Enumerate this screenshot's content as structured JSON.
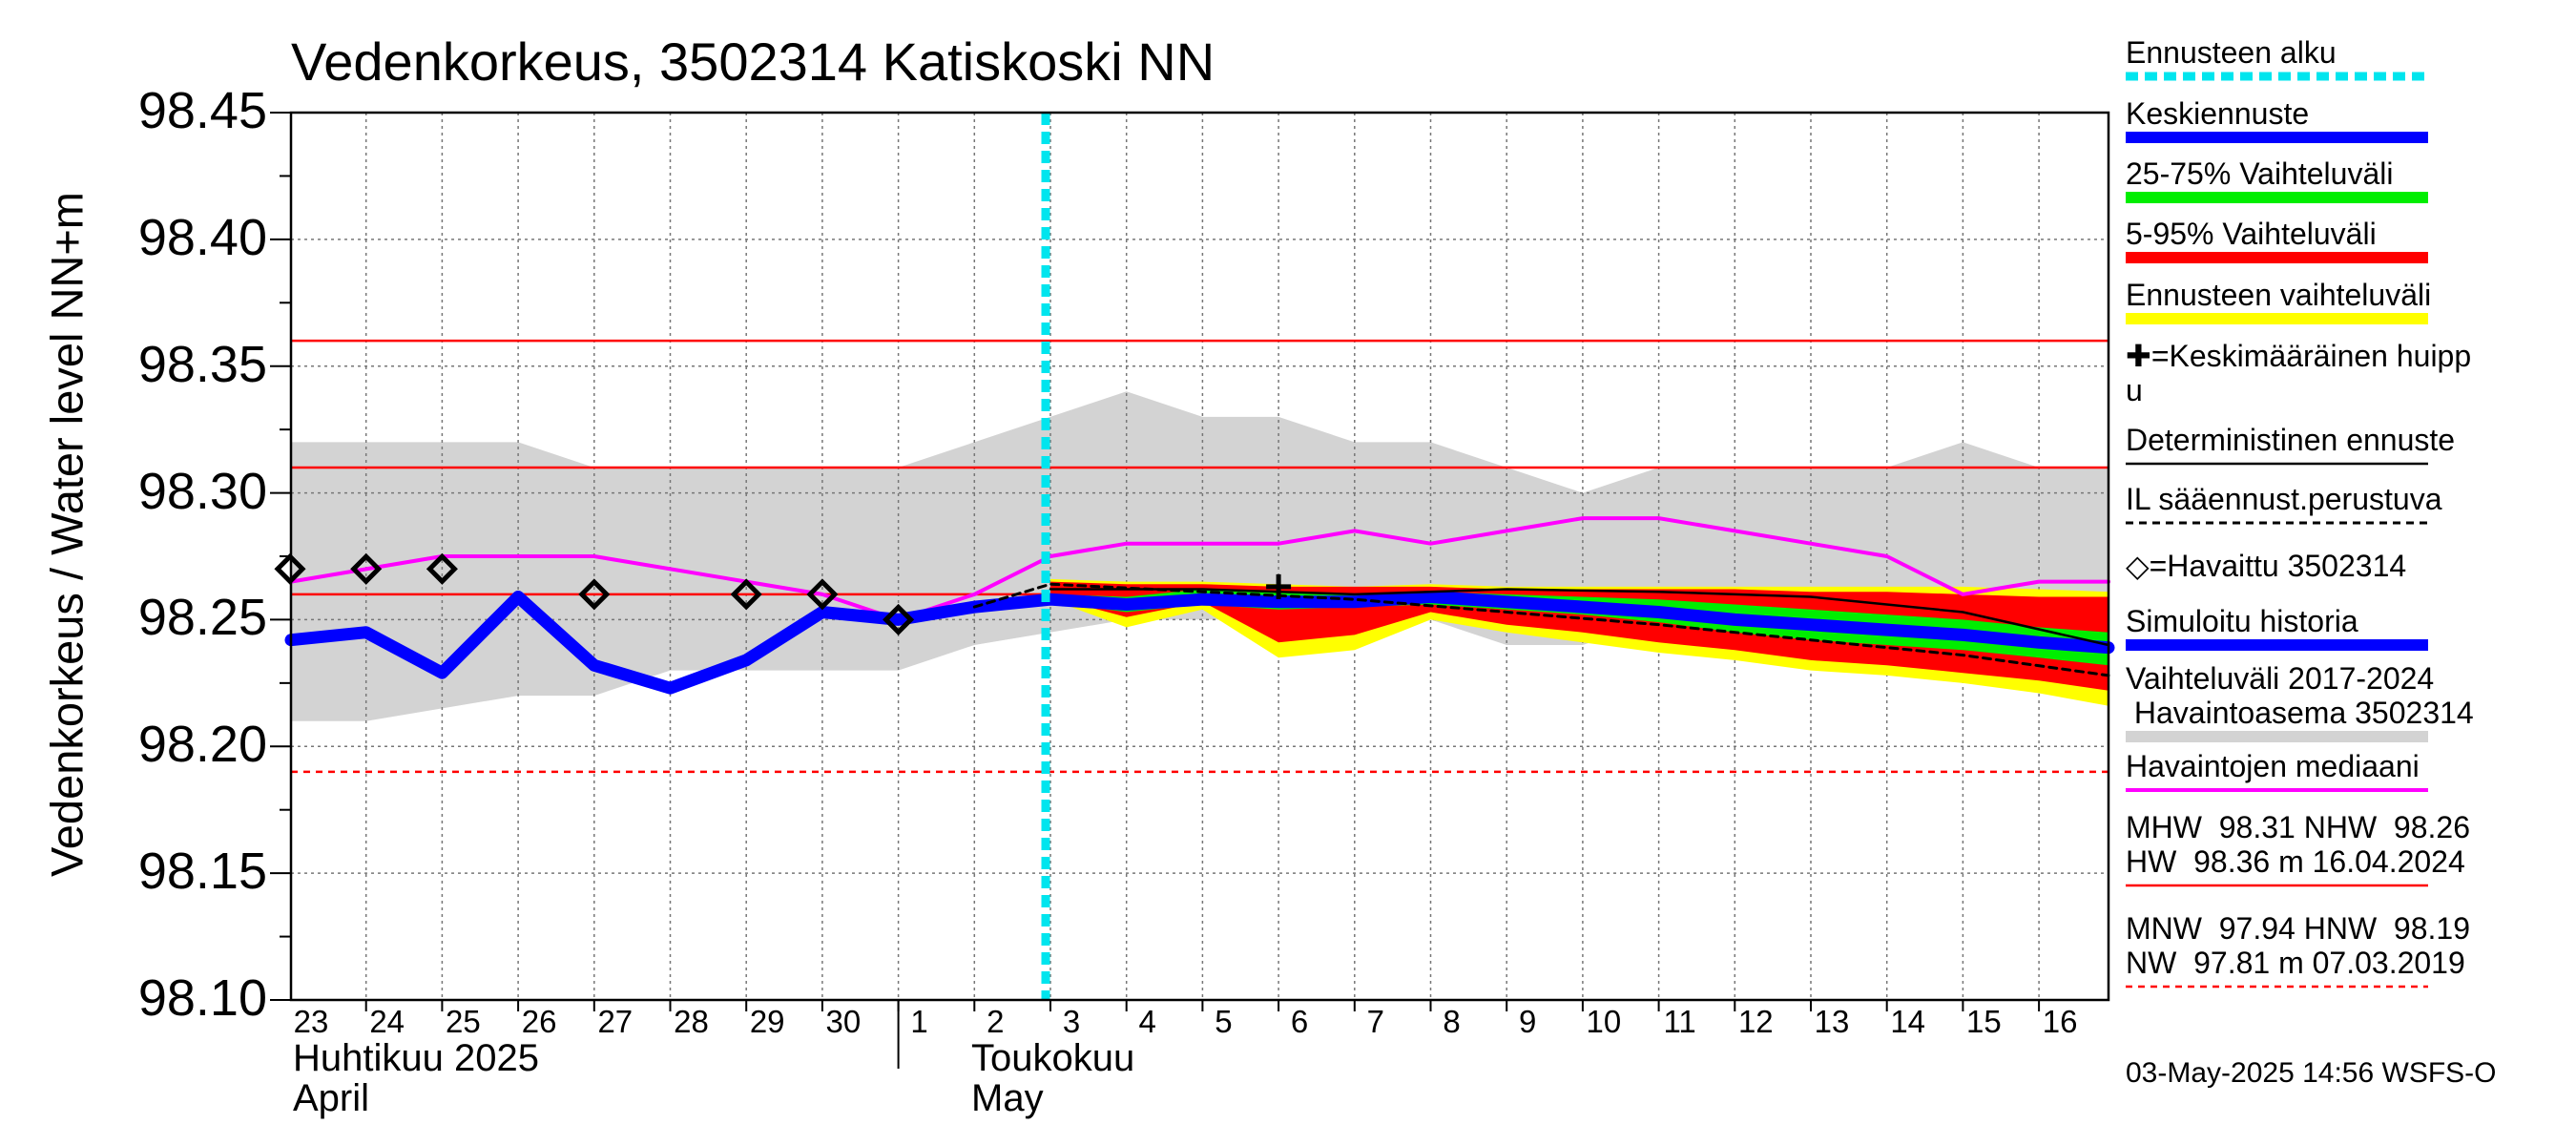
{
  "title": "Vedenkorkeus, 3502314 Katiskoski NN",
  "y_axis": {
    "label": "Vedenkorkeus / Water level   NN+m",
    "ticks": [
      "98.45",
      "98.40",
      "98.35",
      "98.30",
      "98.25",
      "98.20",
      "98.15",
      "98.10"
    ]
  },
  "x_axis": {
    "day_labels": [
      "23",
      "24",
      "25",
      "26",
      "27",
      "28",
      "29",
      "30",
      "1",
      "2",
      "3",
      "4",
      "5",
      "6",
      "7",
      "8",
      "9",
      "10",
      "11",
      "12",
      "13",
      "14",
      "15",
      "16"
    ],
    "month_left": {
      "fi": "Huhtikuu  2025",
      "en": "April"
    },
    "month_right": {
      "fi": "Toukokuu",
      "en": "May"
    }
  },
  "legend": {
    "items": [
      {
        "label": "Ennusteen alku",
        "color": "#00e5ee",
        "style": "dashed-thick"
      },
      {
        "label": "Keskiennuste",
        "color": "#0000ff",
        "style": "thick"
      },
      {
        "label": "25-75% Vaihteluväli",
        "color": "#00ee00",
        "style": "thick"
      },
      {
        "label": "5-95% Vaihteluväli",
        "color": "#ff0000",
        "style": "thick"
      },
      {
        "label": "Ennusteen vaihteluväli",
        "color": "#ffff00",
        "style": "thick"
      },
      {
        "label": "✚=Keskimääräinen huipp\nu",
        "color": "",
        "style": "none"
      },
      {
        "label": "Deterministinen ennuste",
        "color": "#000000",
        "style": "thin"
      },
      {
        "label": "IL sääennust.perustuva",
        "color": "#000000",
        "style": "dashed"
      },
      {
        "label": "◇=Havaittu 3502314",
        "color": "",
        "style": "none"
      },
      {
        "label": "Simuloitu historia",
        "color": "#0000ff",
        "style": "thick"
      },
      {
        "label": "Vaihteluväli 2017-2024\n Havaintoasema 3502314",
        "color": "#d3d3d3",
        "style": "thick"
      },
      {
        "label": "Havaintojen mediaani",
        "color": "#ff00ff",
        "style": "medium"
      },
      {
        "label": "MHW  98.31 NHW  98.26\nHW  98.36 m 16.04.2024",
        "color": "#ff0000",
        "style": "thin"
      },
      {
        "label": "MNW  97.94 HNW  98.19\nNW  97.81 m 07.03.2019",
        "color": "#ff0000",
        "style": "dotted"
      }
    ]
  },
  "timestamp": "03-May-2025 14:56 WSFS-O",
  "chart_data": {
    "type": "line",
    "title": "Vedenkorkeus, 3502314 Katiskoski NN",
    "ylabel": "Vedenkorkeus / Water level   NN+m",
    "ylim": [
      98.1,
      98.45
    ],
    "xlim": [
      "2025-04-23",
      "2025-05-16"
    ],
    "x": [
      "2025-04-23",
      "2025-04-24",
      "2025-04-25",
      "2025-04-26",
      "2025-04-27",
      "2025-04-28",
      "2025-04-29",
      "2025-04-30",
      "2025-05-01",
      "2025-05-02",
      "2025-05-03",
      "2025-05-04",
      "2025-05-05",
      "2025-05-06",
      "2025-05-07",
      "2025-05-08",
      "2025-05-09",
      "2025-05-10",
      "2025-05-11",
      "2025-05-12",
      "2025-05-13",
      "2025-05-14",
      "2025-05-15",
      "2025-05-16"
    ],
    "forecast_start": "2025-05-03",
    "reference_lines": [
      {
        "name": "HW",
        "value": 98.36,
        "color": "#ff0000",
        "style": "solid"
      },
      {
        "name": "MHW",
        "value": 98.31,
        "color": "#ff0000",
        "style": "solid"
      },
      {
        "name": "NHW",
        "value": 98.26,
        "color": "#ff0000",
        "style": "solid"
      },
      {
        "name": "HNW",
        "value": 98.19,
        "color": "#ff0000",
        "style": "dotted"
      }
    ],
    "variation_band_2017_2024": {
      "x": [
        "2025-04-22",
        "2025-04-24",
        "2025-04-26",
        "2025-04-27",
        "2025-04-28",
        "2025-04-30",
        "2025-05-01",
        "2025-05-02",
        "2025-05-04",
        "2025-05-05",
        "2025-05-06",
        "2025-05-07",
        "2025-05-08",
        "2025-05-09",
        "2025-05-10",
        "2025-05-11",
        "2025-05-12",
        "2025-05-13",
        "2025-05-14",
        "2025-05-15",
        "2025-05-16",
        "2025-05-17"
      ],
      "upper": [
        98.32,
        98.32,
        98.32,
        98.31,
        98.31,
        98.31,
        98.31,
        98.32,
        98.34,
        98.33,
        98.33,
        98.32,
        98.32,
        98.31,
        98.3,
        98.31,
        98.31,
        98.31,
        98.31,
        98.32,
        98.31,
        98.31
      ],
      "lower": [
        98.21,
        98.21,
        98.22,
        98.22,
        98.23,
        98.23,
        98.23,
        98.24,
        98.25,
        98.25,
        98.25,
        98.25,
        98.25,
        98.24,
        98.24,
        98.25,
        98.25,
        98.25,
        98.25,
        98.24,
        98.24,
        98.24
      ]
    },
    "series": [
      {
        "name": "Havaintojen mediaani",
        "color": "#ff00ff",
        "x": [
          "2025-04-23",
          "2025-04-25",
          "2025-04-27",
          "2025-04-29",
          "2025-04-30",
          "2025-05-01",
          "2025-05-02",
          "2025-05-03",
          "2025-05-04",
          "2025-05-05",
          "2025-05-06",
          "2025-05-07",
          "2025-05-08",
          "2025-05-09",
          "2025-05-10",
          "2025-05-11",
          "2025-05-12",
          "2025-05-13",
          "2025-05-14",
          "2025-05-15",
          "2025-05-16",
          "2025-05-17"
        ],
        "values": [
          98.265,
          98.275,
          98.275,
          98.265,
          98.26,
          98.25,
          98.26,
          98.275,
          98.28,
          98.28,
          98.28,
          98.285,
          98.28,
          98.285,
          98.29,
          98.29,
          98.285,
          98.28,
          98.275,
          98.26,
          98.265,
          98.265
        ]
      },
      {
        "name": "Simuloitu historia",
        "color": "#0000ff",
        "x": [
          "2025-04-23",
          "2025-04-24",
          "2025-04-25",
          "2025-04-26",
          "2025-04-27",
          "2025-04-28",
          "2025-04-29",
          "2025-04-30",
          "2025-05-01",
          "2025-05-02",
          "2025-05-03"
        ],
        "values": [
          98.242,
          98.245,
          98.229,
          98.259,
          98.232,
          98.223,
          98.234,
          98.253,
          98.25,
          98.255,
          98.258
        ]
      },
      {
        "name": "Keskiennuste",
        "color": "#0000ff",
        "x": [
          "2025-05-03",
          "2025-05-04",
          "2025-05-05",
          "2025-05-06",
          "2025-05-07",
          "2025-05-08",
          "2025-05-09",
          "2025-05-10",
          "2025-05-11",
          "2025-05-12",
          "2025-05-13",
          "2025-05-14",
          "2025-05-15",
          "2025-05-16",
          "2025-05-17"
        ],
        "values": [
          98.258,
          98.256,
          98.258,
          98.257,
          98.257,
          98.259,
          98.257,
          98.255,
          98.253,
          98.25,
          98.248,
          98.246,
          98.244,
          98.241,
          98.239
        ]
      },
      {
        "name": "Deterministinen ennuste",
        "color": "#000000",
        "x": [
          "2025-05-03",
          "2025-05-05",
          "2025-05-07",
          "2025-05-09",
          "2025-05-11",
          "2025-05-13",
          "2025-05-15",
          "2025-05-17"
        ],
        "values": [
          98.262,
          98.262,
          98.26,
          98.262,
          98.261,
          98.259,
          98.253,
          98.24
        ]
      },
      {
        "name": "IL sääennust.perustuva",
        "color": "#000000",
        "x": [
          "2025-05-02",
          "2025-05-03",
          "2025-05-05",
          "2025-05-07",
          "2025-05-09",
          "2025-05-11",
          "2025-05-13",
          "2025-05-15",
          "2025-05-17"
        ],
        "values": [
          98.255,
          98.264,
          98.261,
          98.258,
          98.253,
          98.248,
          98.242,
          98.236,
          98.228
        ]
      },
      {
        "name": "Havaittu 3502314",
        "color": "#000000",
        "marker": "diamond",
        "x": [
          "2025-04-23",
          "2025-04-24",
          "2025-04-25",
          "2025-04-27",
          "2025-04-29",
          "2025-04-30",
          "2025-05-01"
        ],
        "values": [
          98.27,
          98.27,
          98.27,
          98.26,
          98.26,
          98.26,
          98.25
        ]
      },
      {
        "name": "Keskimääräinen huippu",
        "color": "#000000",
        "marker": "plus",
        "x": [
          "2025-05-06"
        ],
        "values": [
          98.263
        ]
      }
    ],
    "forecast_bands": [
      {
        "name": "Ennusteen vaihteluväli",
        "color": "#ffff00",
        "x": [
          "2025-05-03",
          "2025-05-04",
          "2025-05-05",
          "2025-05-06",
          "2025-05-07",
          "2025-05-08",
          "2025-05-09",
          "2025-05-10",
          "2025-05-11",
          "2025-05-12",
          "2025-05-13",
          "2025-05-14",
          "2025-05-15",
          "2025-05-16",
          "2025-05-17"
        ],
        "upper": [
          98.266,
          98.265,
          98.265,
          98.264,
          98.263,
          98.264,
          98.263,
          98.263,
          98.263,
          98.263,
          98.263,
          98.263,
          98.263,
          98.262,
          98.261
        ],
        "lower": [
          98.258,
          98.247,
          98.254,
          98.235,
          98.238,
          98.25,
          98.245,
          98.241,
          98.237,
          98.234,
          98.23,
          98.228,
          98.225,
          98.221,
          98.216
        ]
      },
      {
        "name": "5-95% Vaihteluväli",
        "color": "#ff0000",
        "x": [
          "2025-05-03",
          "2025-05-04",
          "2025-05-05",
          "2025-05-06",
          "2025-05-07",
          "2025-05-08",
          "2025-05-09",
          "2025-05-10",
          "2025-05-11",
          "2025-05-12",
          "2025-05-13",
          "2025-05-14",
          "2025-05-15",
          "2025-05-16",
          "2025-05-17"
        ],
        "upper": [
          98.265,
          98.264,
          98.264,
          98.263,
          98.263,
          98.263,
          98.262,
          98.262,
          98.262,
          98.262,
          98.261,
          98.261,
          98.26,
          98.259,
          98.259
        ],
        "lower": [
          98.259,
          98.251,
          98.257,
          98.241,
          98.244,
          98.253,
          98.248,
          98.245,
          98.241,
          98.238,
          98.234,
          98.232,
          98.229,
          98.226,
          98.222
        ]
      },
      {
        "name": "25-75% Vaihteluväli",
        "color": "#00ee00",
        "x": [
          "2025-05-03",
          "2025-05-04",
          "2025-05-05",
          "2025-05-06",
          "2025-05-07",
          "2025-05-08",
          "2025-05-09",
          "2025-05-10",
          "2025-05-11",
          "2025-05-12",
          "2025-05-13",
          "2025-05-14",
          "2025-05-15",
          "2025-05-16",
          "2025-05-17"
        ],
        "upper": [
          98.26,
          98.259,
          98.262,
          98.261,
          98.26,
          98.261,
          98.26,
          98.259,
          98.258,
          98.256,
          98.254,
          98.252,
          98.25,
          98.247,
          98.245
        ],
        "lower": [
          98.257,
          98.253,
          98.256,
          98.254,
          98.255,
          98.256,
          98.254,
          98.252,
          98.249,
          98.245,
          98.242,
          98.24,
          98.238,
          98.235,
          98.232
        ]
      }
    ]
  }
}
